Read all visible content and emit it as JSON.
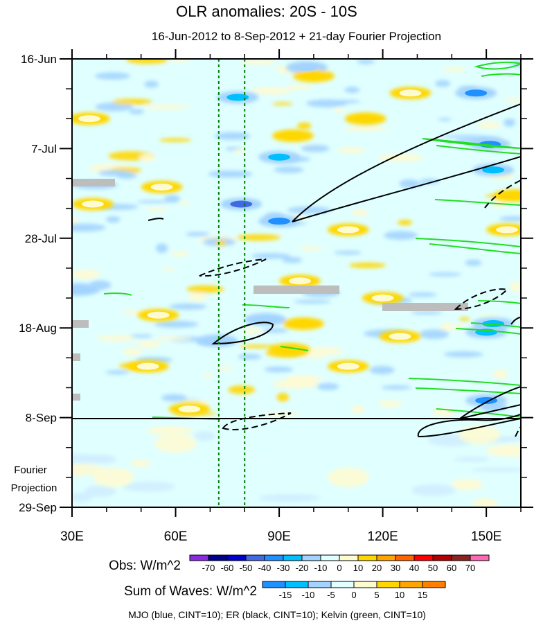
{
  "chart_data": {
    "type": "heatmap",
    "title": "OLR anomalies: 20S - 10S",
    "subtitle": "16-Jun-2012 to 8-Sep-2012 + 21-day Fourier Projection",
    "x_ticks": [
      {
        "value": 30,
        "label": "30E"
      },
      {
        "value": 60,
        "label": "60E"
      },
      {
        "value": 90,
        "label": "90E"
      },
      {
        "value": 120,
        "label": "120E"
      },
      {
        "value": 150,
        "label": "150E"
      }
    ],
    "y_ticks": [
      {
        "day": 0,
        "label": "16-Jun"
      },
      {
        "day": 21,
        "label": "7-Jul"
      },
      {
        "day": 42,
        "label": "28-Jul"
      },
      {
        "day": 63,
        "label": "18-Aug"
      },
      {
        "day": 84,
        "label": "8-Sep"
      },
      {
        "day": 105,
        "label": "29-Sep"
      }
    ],
    "xlim": [
      30,
      160
    ],
    "ylim_days": [
      0,
      105
    ],
    "projection_start_day": 84,
    "projection_label_line1": "Fourier",
    "projection_label_line2": "Projection",
    "reference_lines_lon": [
      72.5,
      80
    ],
    "obs_colorbar": {
      "title": "Obs: W/m^2",
      "levels": [
        -70,
        -60,
        -50,
        -40,
        -30,
        -20,
        -10,
        0,
        10,
        20,
        30,
        40,
        50,
        60,
        70
      ],
      "colors": [
        "#8a2be2",
        "#00008b",
        "#0000cd",
        "#4169e1",
        "#1e90ff",
        "#00bfff",
        "#a3d4ff",
        "#e0ffff",
        "#fffbd0",
        "#ffd700",
        "#ffa500",
        "#ff6400",
        "#ff0000",
        "#b20000",
        "#8b2323",
        "#ff69b4"
      ]
    },
    "waves_colorbar": {
      "title": "Sum of Waves: W/m^2",
      "levels": [
        -15,
        -10,
        -5,
        0,
        5,
        10,
        15
      ],
      "colors": [
        "#1e90ff",
        "#00bfff",
        "#a3d4ff",
        "#e0ffff",
        "#fffbd0",
        "#ffd700",
        "#ffa500",
        "#ff7f00"
      ]
    },
    "footer": "MJO (blue, CINT=10); ER (black, CINT=10); Kelvin (green, CINT=10)",
    "obs_features": [
      {
        "lon": 78,
        "day": 9,
        "value": -35
      },
      {
        "lon": 90,
        "day": 23,
        "value": -35
      },
      {
        "lon": 79,
        "day": 34,
        "value": -55
      },
      {
        "lon": 90,
        "day": 38,
        "value": -45
      },
      {
        "lon": 98,
        "day": 2,
        "value": -25
      },
      {
        "lon": 147,
        "day": 8,
        "value": -45
      },
      {
        "lon": 151,
        "day": 20,
        "value": -40
      },
      {
        "lon": 152,
        "day": 26,
        "value": -30
      },
      {
        "lon": 152,
        "day": 62,
        "value": -35
      },
      {
        "lon": 150,
        "day": 64,
        "value": -30
      },
      {
        "lon": 150,
        "day": 80,
        "value": -40
      },
      {
        "lon": 32,
        "day": 54,
        "value": -20
      },
      {
        "lon": 72,
        "day": 66,
        "value": -20
      },
      {
        "lon": 86,
        "day": 61,
        "value": -20
      },
      {
        "lon": 96,
        "day": 52,
        "value": 12
      },
      {
        "lon": 97,
        "day": 62,
        "value": 15
      },
      {
        "lon": 55,
        "day": 60,
        "value": 12
      },
      {
        "lon": 52,
        "day": 72,
        "value": 10
      },
      {
        "lon": 100,
        "day": 4,
        "value": 15
      },
      {
        "lon": 115,
        "day": 14,
        "value": 15
      },
      {
        "lon": 94,
        "day": 18,
        "value": 15
      },
      {
        "lon": 128,
        "day": 8,
        "value": 12
      },
      {
        "lon": 56,
        "day": 30,
        "value": 12
      },
      {
        "lon": 36,
        "day": 34,
        "value": 12
      },
      {
        "lon": 110,
        "day": 40,
        "value": 12
      },
      {
        "lon": 120,
        "day": 56,
        "value": 12
      },
      {
        "lon": 93,
        "day": 68,
        "value": 20
      },
      {
        "lon": 110,
        "day": 72,
        "value": 12
      },
      {
        "lon": 125,
        "day": 65,
        "value": 12
      },
      {
        "lon": 158,
        "day": 32,
        "value": 15
      },
      {
        "lon": 156,
        "day": 40,
        "value": 12
      },
      {
        "lon": 64,
        "day": 82,
        "value": 10
      },
      {
        "lon": 35,
        "day": 14,
        "value": 12
      }
    ],
    "projection_features": [
      {
        "lon": 85,
        "day": 94,
        "value": -10
      },
      {
        "lon": 60,
        "day": 90,
        "value": -5
      },
      {
        "lon": 110,
        "day": 98,
        "value": -5
      },
      {
        "lon": 148,
        "day": 88,
        "value": 5
      },
      {
        "lon": 42,
        "day": 98,
        "value": 5
      }
    ]
  }
}
